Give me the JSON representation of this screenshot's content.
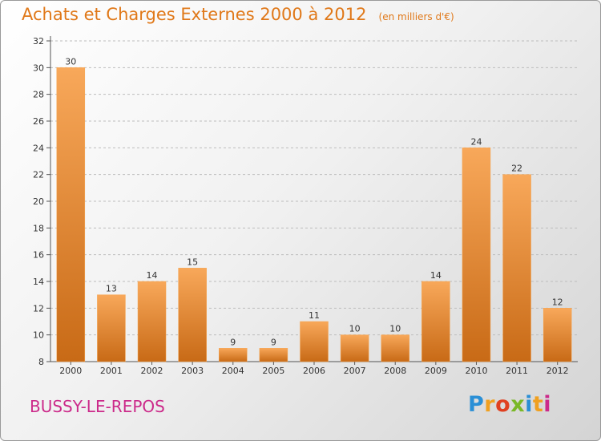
{
  "header": {
    "title": "Achats et Charges Externes 2000 à 2012",
    "unit": "(en milliers d'€)"
  },
  "footer": {
    "commune": "BUSSY-LE-REPOS",
    "logo_letters": [
      "P",
      "r",
      "o",
      "x",
      "i",
      "t",
      "i"
    ],
    "logo_colors": [
      "#2a8fd6",
      "#f0a020",
      "#e04020",
      "#7ab828",
      "#2a8fd6",
      "#f0a020",
      "#cc2a8a"
    ]
  },
  "colors": {
    "title": "#e07818",
    "bar_light": "#f8a85a",
    "bar_dark": "#c86a16",
    "commune": "#cc2a8a",
    "grid": "#bdbdbd"
  },
  "chart_data": {
    "type": "bar",
    "categories": [
      "2000",
      "2001",
      "2002",
      "2003",
      "2004",
      "2005",
      "2006",
      "2007",
      "2008",
      "2009",
      "2010",
      "2011",
      "2012"
    ],
    "values": [
      30,
      13,
      14,
      15,
      9,
      9,
      11,
      10,
      10,
      14,
      24,
      22,
      12
    ],
    "data_labels": [
      "30",
      "13",
      "14",
      "15",
      "9",
      "9",
      "11",
      "10",
      "10",
      "14",
      "24",
      "22",
      "12"
    ],
    "y_ticks": [
      "8",
      "10",
      "12",
      "14",
      "16",
      "18",
      "20",
      "22",
      "24",
      "26",
      "28",
      "30",
      "32"
    ],
    "ylim": [
      8,
      32
    ],
    "grid": true,
    "xlabel": "",
    "ylabel": ""
  }
}
